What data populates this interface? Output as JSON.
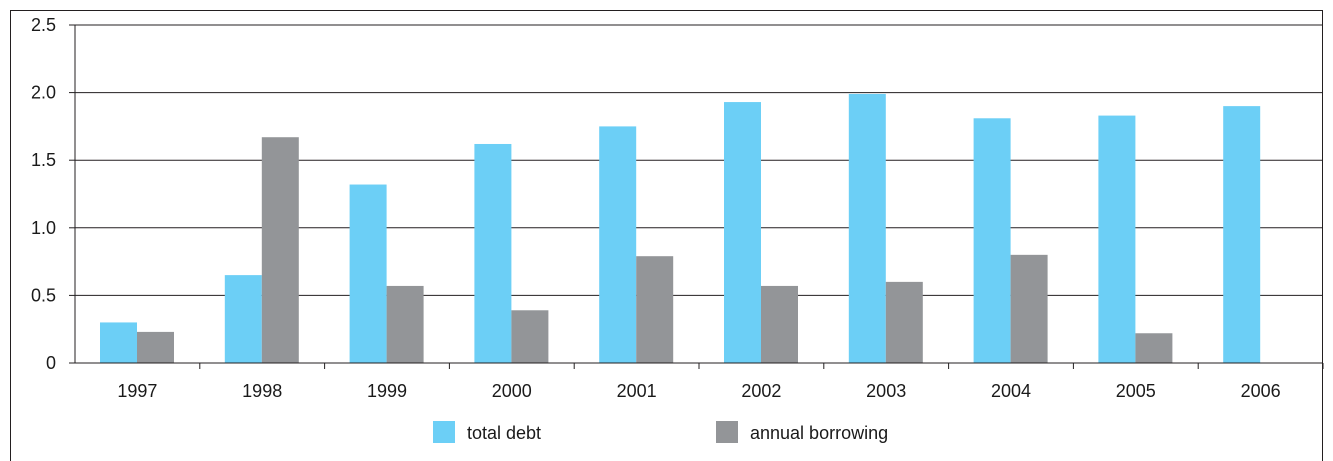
{
  "chart_data": {
    "type": "bar",
    "categories": [
      "1997",
      "1998",
      "1999",
      "2000",
      "2001",
      "2002",
      "2003",
      "2004",
      "2005",
      "2006"
    ],
    "series": [
      {
        "name": "total debt",
        "color": "#6ccff6",
        "values": [
          0.3,
          0.65,
          1.32,
          1.62,
          1.75,
          1.93,
          1.99,
          1.81,
          1.83,
          1.9
        ]
      },
      {
        "name": "annual borrowing",
        "color": "#939598",
        "values": [
          0.23,
          1.67,
          0.57,
          0.39,
          0.79,
          0.57,
          0.6,
          0.8,
          0.22,
          null
        ]
      }
    ],
    "y_ticks": [
      "0",
      "0.5",
      "1.0",
      "1.5",
      "2.0",
      "2.5"
    ],
    "title": "",
    "xlabel": "",
    "ylabel": "",
    "ylim": [
      0,
      2.5
    ],
    "grid": true,
    "legend_position": "bottom"
  }
}
